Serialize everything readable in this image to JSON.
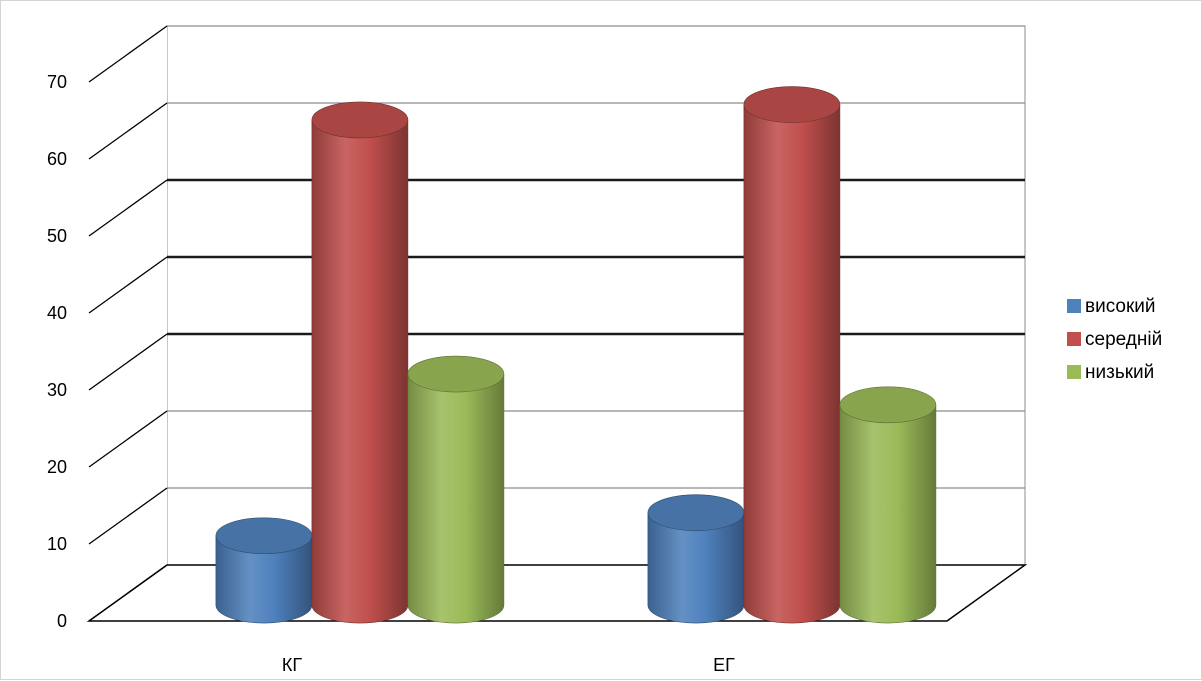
{
  "chart_data": {
    "type": "bar",
    "style": "3d-cylinder",
    "categories": [
      "КГ",
      "ЕГ"
    ],
    "series": [
      {
        "name": "високий",
        "values": [
          9,
          12
        ],
        "color": "#4f81bd"
      },
      {
        "name": "середній",
        "values": [
          63,
          65
        ],
        "color": "#c0504d"
      },
      {
        "name": "низький",
        "values": [
          30,
          26
        ],
        "color": "#9bbb59"
      }
    ],
    "ylim": [
      0,
      70
    ],
    "y_ticks": [
      "0",
      "10",
      "20",
      "30",
      "40",
      "50",
      "60",
      "70"
    ],
    "grid": true,
    "legend_position": "right"
  }
}
